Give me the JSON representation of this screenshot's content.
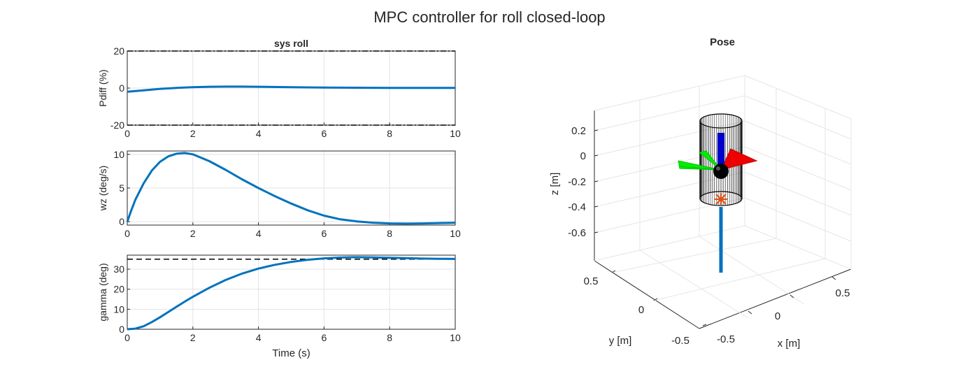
{
  "figure_title": "MPC controller for roll closed-loop",
  "chart_data": [
    {
      "type": "line",
      "title": "sys roll",
      "xlabel": "",
      "ylabel": "Pdiff (%)",
      "xlim": [
        0,
        10
      ],
      "ylim": [
        -20,
        20
      ],
      "xticks": [
        0,
        2,
        4,
        6,
        8,
        10
      ],
      "yticks": [
        -20,
        0,
        20
      ],
      "grid": true,
      "constraints": [
        {
          "y": 20,
          "style": "dashdot"
        },
        {
          "y": -20,
          "style": "dashdot"
        }
      ],
      "series": [
        {
          "color": "#0072BD",
          "x": [
            0,
            0.5,
            1,
            1.5,
            2,
            2.5,
            3,
            3.5,
            4,
            5,
            6,
            7,
            8,
            9,
            10
          ],
          "y": [
            -2.0,
            -1.2,
            -0.4,
            0.1,
            0.5,
            0.7,
            0.8,
            0.8,
            0.7,
            0.5,
            0.3,
            0.2,
            0.1,
            0.1,
            0.1
          ]
        }
      ]
    },
    {
      "type": "line",
      "title": "",
      "xlabel": "",
      "ylabel": "wz (deg/s)",
      "xlim": [
        0,
        10
      ],
      "ylim": [
        -0.5,
        10.5
      ],
      "xticks": [
        0,
        2,
        4,
        6,
        8,
        10
      ],
      "yticks": [
        0,
        5,
        10
      ],
      "grid": true,
      "constraints": [],
      "series": [
        {
          "color": "#0072BD",
          "x": [
            0,
            0.1,
            0.25,
            0.5,
            0.75,
            1.0,
            1.25,
            1.5,
            1.75,
            2.0,
            2.5,
            3.0,
            3.5,
            4.0,
            4.5,
            5.0,
            5.5,
            6.0,
            6.5,
            7.0,
            7.5,
            8.0,
            8.5,
            9.0,
            9.5,
            10.0
          ],
          "y": [
            0,
            1.4,
            3.3,
            5.7,
            7.6,
            8.9,
            9.7,
            10.1,
            10.2,
            10.0,
            9.0,
            7.7,
            6.3,
            5.0,
            3.8,
            2.7,
            1.7,
            0.9,
            0.35,
            0.05,
            -0.15,
            -0.25,
            -0.28,
            -0.25,
            -0.2,
            -0.15
          ]
        }
      ]
    },
    {
      "type": "line",
      "title": "",
      "xlabel": "Time (s)",
      "ylabel": "gamma (deg)",
      "xlim": [
        0,
        10
      ],
      "ylim": [
        0,
        37
      ],
      "xticks": [
        0,
        2,
        4,
        6,
        8,
        10
      ],
      "yticks": [
        0,
        10,
        20,
        30
      ],
      "grid": true,
      "constraints": [
        {
          "y": 35,
          "style": "dashed"
        }
      ],
      "series": [
        {
          "color": "#0072BD",
          "x": [
            0,
            0.25,
            0.5,
            0.75,
            1.0,
            1.25,
            1.5,
            1.75,
            2.0,
            2.5,
            3.0,
            3.5,
            4.0,
            4.5,
            5.0,
            5.5,
            6.0,
            6.5,
            7.0,
            7.5,
            8.0,
            8.5,
            9.0,
            9.5,
            10.0
          ],
          "y": [
            0,
            0.3,
            1.5,
            3.6,
            6.0,
            8.6,
            11.2,
            13.8,
            16.2,
            20.7,
            24.6,
            27.8,
            30.3,
            32.2,
            33.6,
            34.7,
            35.4,
            35.8,
            36.0,
            35.9,
            35.7,
            35.5,
            35.3,
            35.2,
            35.1
          ]
        }
      ]
    },
    {
      "type": "scatter",
      "title": "Pose",
      "xlabel": "x [m]",
      "ylabel": "y [m]",
      "zlabel": "z [m]",
      "projection": "3d",
      "xticks": [
        -0.5,
        0,
        0.5
      ],
      "yticks": [
        -0.5,
        0,
        0.5
      ],
      "zticks": [
        0.2,
        0,
        -0.2,
        -0.4,
        -0.6
      ],
      "grid": true,
      "objects": [
        {
          "kind": "cylinder",
          "color": "#000000"
        },
        {
          "kind": "axis-triad",
          "colors": [
            "#FF0000",
            "#00FF00",
            "#0000FF"
          ]
        },
        {
          "kind": "thrust-vector",
          "color": "#0072BD"
        },
        {
          "kind": "center-of-mass",
          "color": "#D95319"
        }
      ]
    }
  ]
}
